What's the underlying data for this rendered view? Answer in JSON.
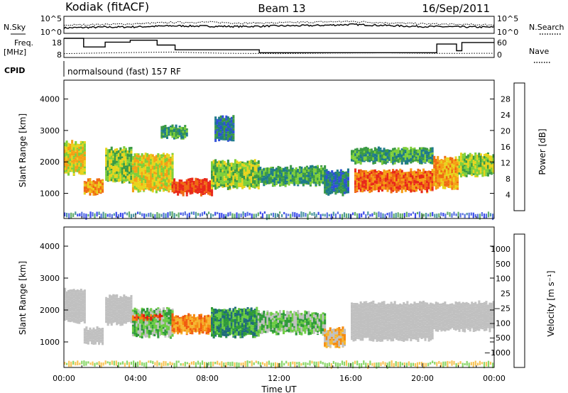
{
  "header": {
    "station": "Kodiak (fitACF)",
    "beam": "Beam 13",
    "date": "16/Sep/2011"
  },
  "labels": {
    "n_sky": "N.Sky",
    "n_search": "N.Search",
    "freq": "Freq.",
    "freq_unit": "[MHz]",
    "nave": "Nave",
    "cpid": "CPID",
    "cpid_value": "normalsound (fast) 157 RF"
  },
  "colors": {
    "power": [
      "#0a1ee6",
      "#2f4fd8",
      "#1f7b8a",
      "#3b9a45",
      "#7fcf3a",
      "#e8d41d",
      "#f5a015",
      "#ef6b12",
      "#e8281a"
    ],
    "velocity": [
      "#e01a12",
      "#f05a10",
      "#f58a10",
      "#f5b530",
      "#c0c0c0",
      "#c0c0c0",
      "#2f9a3a",
      "#6ccc44",
      "#1f6b7a",
      "#1f4fd0",
      "#2030d8"
    ],
    "ground": "#9a9a9a"
  },
  "chart_data": [
    {
      "type": "line",
      "title": "Kodiak (fitACF)",
      "subtitle": "Beam 13",
      "panel": "noise",
      "y_tick_labels_left": [
        "10^5",
        "10^0"
      ],
      "y_tick_labels_right": [
        "10^5",
        "10^0"
      ],
      "xlim": [
        0,
        24
      ],
      "series": [
        {
          "name": "N.Sky",
          "x": [
            0,
            2,
            4,
            6,
            8,
            10,
            12,
            14,
            16,
            18,
            20,
            22,
            24
          ],
          "y": [
            1.6,
            1.8,
            1.9,
            2.2,
            2.1,
            2.0,
            2.2,
            2.3,
            2.6,
            2.3,
            2.0,
            1.9,
            1.8
          ]
        },
        {
          "name": "N.Search",
          "x": [
            0,
            2,
            4,
            6,
            8,
            10,
            12,
            14,
            16,
            18,
            20,
            22,
            24
          ],
          "y": [
            2.4,
            2.6,
            2.8,
            3.2,
            3.3,
            3.0,
            3.1,
            3.3,
            3.5,
            3.1,
            2.8,
            2.6,
            2.5
          ]
        }
      ]
    },
    {
      "type": "line",
      "panel": "frequency",
      "y_tick_labels_left": [
        "18",
        "8"
      ],
      "y_tick_labels_right": [
        "60",
        "0"
      ],
      "xlim": [
        0,
        24
      ],
      "series": [
        {
          "name": "Freq.",
          "x": [
            0,
            1.1,
            1.1,
            2.3,
            2.3,
            3.7,
            3.7,
            5.2,
            5.2,
            6.2,
            6.2,
            10.9,
            10.9,
            20.8,
            20.8,
            21.9,
            21.9,
            22.2,
            22.2,
            24
          ],
          "y": [
            18,
            18,
            13.5,
            13.5,
            16,
            16,
            17,
            17,
            14.5,
            14.5,
            12,
            12,
            10.5,
            10.5,
            15,
            15,
            11.5,
            11.5,
            15.8,
            15.8
          ]
        },
        {
          "name": "Nave",
          "x": [
            0,
            3,
            6,
            9,
            12,
            15,
            18,
            21,
            24
          ],
          "y": [
            10,
            10.5,
            10.8,
            10.2,
            10.0,
            10.3,
            10.4,
            10.1,
            10.2
          ]
        }
      ]
    },
    {
      "type": "heatmap",
      "panel": "power",
      "xlabel": "",
      "ylabel": "Slant Range [km]",
      "xlim": [
        0,
        24
      ],
      "ylim": [
        200,
        4600
      ],
      "y_ticks": [
        "1000",
        "2000",
        "3000",
        "4000"
      ],
      "colorbar_label": "Power [dB]",
      "colorbar_ticks": [
        "4",
        "8",
        "12",
        "16",
        "20",
        "24",
        "28"
      ],
      "regions": [
        {
          "t0": 0.0,
          "t1": 1.1,
          "r0": 1550,
          "r1": 2700,
          "level": 5
        },
        {
          "t0": 1.1,
          "t1": 2.2,
          "r0": 900,
          "r1": 1500,
          "level": 6
        },
        {
          "t0": 2.3,
          "t1": 3.8,
          "r0": 1300,
          "r1": 2500,
          "level": 4
        },
        {
          "t0": 3.8,
          "t1": 6.0,
          "r0": 1000,
          "r1": 2300,
          "level": 5
        },
        {
          "t0": 6.0,
          "t1": 8.2,
          "r0": 900,
          "r1": 1500,
          "level": 8
        },
        {
          "t0": 8.2,
          "t1": 10.8,
          "r0": 1100,
          "r1": 2100,
          "level": 4
        },
        {
          "t0": 10.8,
          "t1": 14.5,
          "r0": 1200,
          "r1": 1900,
          "level": 3
        },
        {
          "t0": 14.5,
          "t1": 15.8,
          "r0": 900,
          "r1": 1800,
          "level": 2
        },
        {
          "t0": 16.2,
          "t1": 20.6,
          "r0": 1000,
          "r1": 1800,
          "level": 7
        },
        {
          "t0": 16.0,
          "t1": 20.6,
          "r0": 1900,
          "r1": 2500,
          "level": 3
        },
        {
          "t0": 20.6,
          "t1": 22.0,
          "r0": 1100,
          "r1": 2200,
          "level": 6
        },
        {
          "t0": 22.0,
          "t1": 24.0,
          "r0": 1500,
          "r1": 2300,
          "level": 4
        },
        {
          "t0": 5.4,
          "t1": 6.8,
          "r0": 2700,
          "r1": 3200,
          "level": 3
        },
        {
          "t0": 8.4,
          "t1": 9.4,
          "r0": 2600,
          "r1": 3500,
          "level": 2
        }
      ]
    },
    {
      "type": "heatmap",
      "panel": "velocity",
      "xlabel": "Time UT",
      "ylabel": "Slant Range [km]",
      "xlim": [
        0,
        24
      ],
      "ylim": [
        200,
        4600
      ],
      "x_ticks": [
        "00:00",
        "04:00",
        "08:00",
        "12:00",
        "16:00",
        "20:00",
        "00:00"
      ],
      "y_ticks": [
        "1000",
        "2000",
        "3000",
        "4000"
      ],
      "colorbar_label": "Velocity [m s⁻¹]",
      "colorbar_ticks": [
        "1000",
        "500",
        "100",
        "25",
        "−25",
        "−100",
        "−500",
        "−1000"
      ],
      "regions": [
        {
          "t0": 0.0,
          "t1": 1.1,
          "r0": 1550,
          "r1": 2700,
          "level": 4
        },
        {
          "t0": 1.1,
          "t1": 2.2,
          "r0": 900,
          "r1": 1500,
          "level": 4
        },
        {
          "t0": 2.3,
          "t1": 3.8,
          "r0": 1500,
          "r1": 2500,
          "level": 4
        },
        {
          "t0": 3.8,
          "t1": 6.0,
          "r0": 1100,
          "r1": 2100,
          "level": 6
        },
        {
          "t0": 6.0,
          "t1": 8.2,
          "r0": 1200,
          "r1": 1900,
          "level": 2
        },
        {
          "t0": 8.2,
          "t1": 10.8,
          "r0": 1100,
          "r1": 2100,
          "level": 7
        },
        {
          "t0": 10.8,
          "t1": 14.5,
          "r0": 1200,
          "r1": 2000,
          "level": 6
        },
        {
          "t0": 14.5,
          "t1": 15.6,
          "r0": 800,
          "r1": 1500,
          "level": 3
        },
        {
          "t0": 16.0,
          "t1": 20.6,
          "r0": 1000,
          "r1": 2300,
          "level": 4
        },
        {
          "t0": 20.6,
          "t1": 24.0,
          "r0": 1300,
          "r1": 2300,
          "level": 4
        },
        {
          "t0": 3.8,
          "t1": 5.4,
          "r0": 1650,
          "r1": 1900,
          "level": 1
        }
      ]
    }
  ]
}
